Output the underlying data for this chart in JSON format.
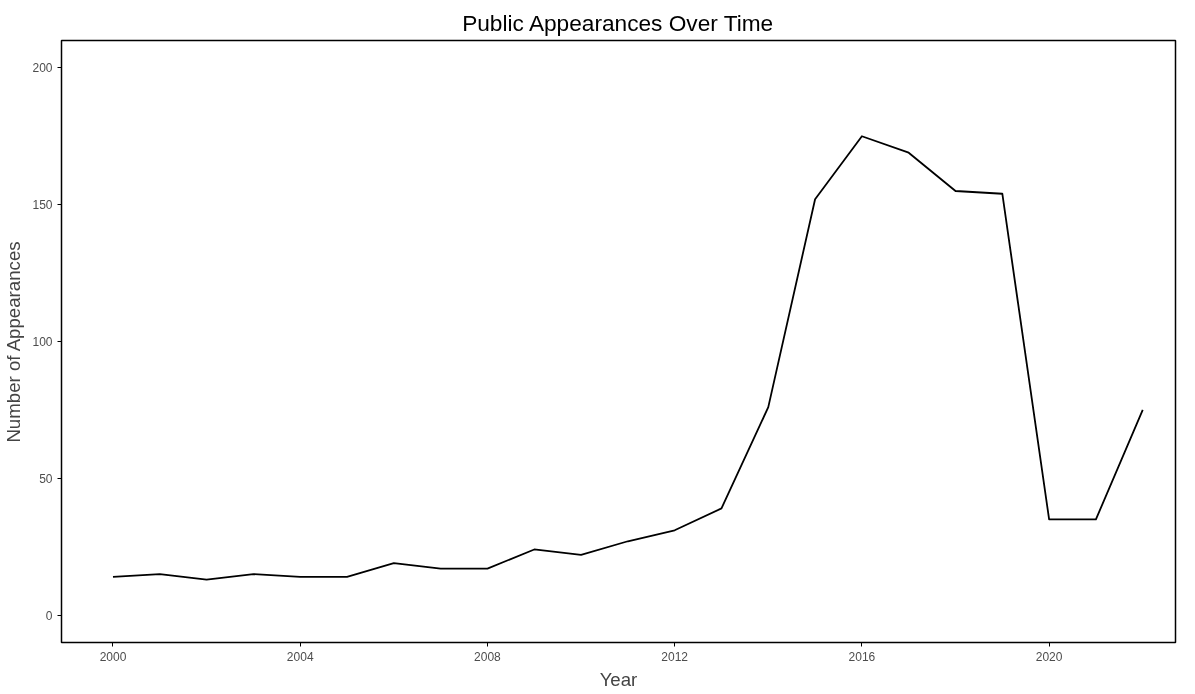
{
  "chart_data": {
    "type": "line",
    "title": "Public Appearances Over Time",
    "xlabel": "Year",
    "ylabel": "Number of Appearances",
    "x": [
      2000,
      2001,
      2002,
      2003,
      2004,
      2005,
      2006,
      2007,
      2008,
      2009,
      2010,
      2011,
      2012,
      2013,
      2014,
      2015,
      2016,
      2017,
      2018,
      2019,
      2020,
      2021,
      2022
    ],
    "series": [
      {
        "color": "#000000",
        "values": [
          14,
          15,
          13,
          15,
          14,
          14,
          19,
          17,
          17,
          24,
          22,
          27,
          31,
          39,
          76,
          152,
          175,
          169,
          155,
          154,
          35,
          35,
          75
        ]
      }
    ],
    "xlim": [
      1998.9,
      2022.7
    ],
    "xticks": [
      2000,
      2004,
      2008,
      2012,
      2016,
      2020
    ],
    "ylim": [
      -10,
      210
    ],
    "yticks": [
      0,
      50,
      100,
      150,
      200
    ],
    "grid": false,
    "marker": "none",
    "line_style": "solid"
  }
}
